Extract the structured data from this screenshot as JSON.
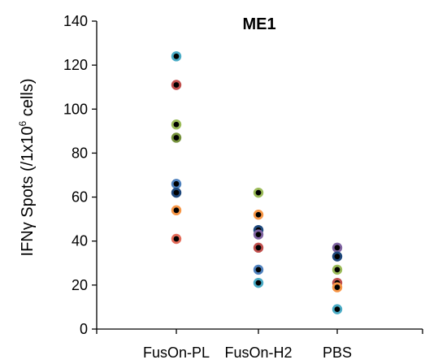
{
  "chart_data": {
    "type": "scatter",
    "title": "ME1",
    "ylabel_main": "IFNγ Spots (/1x10",
    "ylabel_sup": "6",
    "ylabel_tail": " cells)",
    "xlabel": "",
    "categories": [
      "FusOn-PL",
      "FusOn-H2",
      "PBS"
    ],
    "ylim": [
      0,
      140
    ],
    "y_ticks": [
      "0",
      "20",
      "40",
      "60",
      "80",
      "100",
      "120",
      "140"
    ],
    "grid": false,
    "legend": "none",
    "points": [
      {
        "category": "FusOn-PL",
        "y": 124,
        "color": "#4bacc6"
      },
      {
        "category": "FusOn-PL",
        "y": 111,
        "color": "#c0504d"
      },
      {
        "category": "FusOn-PL",
        "y": 93,
        "color": "#9bbb59"
      },
      {
        "category": "FusOn-PL",
        "y": 87,
        "color": "#76923c"
      },
      {
        "category": "FusOn-PL",
        "y": 66,
        "color": "#4f81bd"
      },
      {
        "category": "FusOn-PL",
        "y": 62,
        "color": "#1f497d"
      },
      {
        "category": "FusOn-PL",
        "y": 54,
        "color": "#f79646"
      },
      {
        "category": "FusOn-PL",
        "y": 41,
        "color": "#e46c5a"
      },
      {
        "category": "FusOn-H2",
        "y": 62,
        "color": "#9bbb59"
      },
      {
        "category": "FusOn-H2",
        "y": 52,
        "color": "#f79646"
      },
      {
        "category": "FusOn-H2",
        "y": 45,
        "color": "#1f497d"
      },
      {
        "category": "FusOn-H2",
        "y": 43,
        "color": "#8064a2"
      },
      {
        "category": "FusOn-H2",
        "y": 37,
        "color": "#c0504d"
      },
      {
        "category": "FusOn-H2",
        "y": 27,
        "color": "#4f81bd"
      },
      {
        "category": "FusOn-H2",
        "y": 21,
        "color": "#4bacc6"
      },
      {
        "category": "PBS",
        "y": 37,
        "color": "#8064a2"
      },
      {
        "category": "PBS",
        "y": 33,
        "color": "#1f497d"
      },
      {
        "category": "PBS",
        "y": 27,
        "color": "#9bbb59"
      },
      {
        "category": "PBS",
        "y": 21,
        "color": "#c0504d"
      },
      {
        "category": "PBS",
        "y": 19,
        "color": "#f79646"
      },
      {
        "category": "PBS",
        "y": 9,
        "color": "#4bacc6"
      }
    ]
  }
}
